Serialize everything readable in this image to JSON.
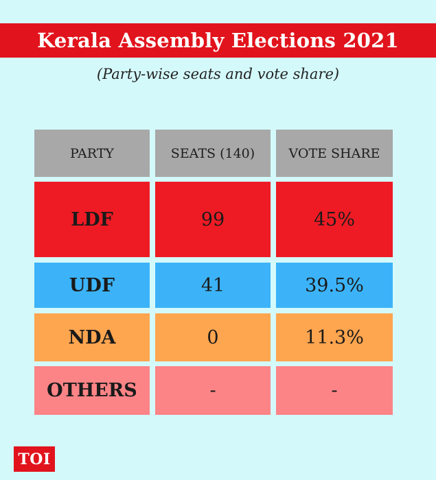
{
  "header": {
    "title": "Kerala Assembly Elections 2021",
    "subtitle": "(Party-wise seats and vote share)"
  },
  "chart_data": {
    "type": "table",
    "title": "Kerala Assembly Elections 2021",
    "subtitle": "(Party-wise seats and vote share)",
    "columns": [
      "PARTY",
      "SEATS (140)",
      "VOTE SHARE"
    ],
    "rows": [
      {
        "party": "LDF",
        "seats": "99",
        "vote_share": "45%",
        "color": "#ee1b24"
      },
      {
        "party": "UDF",
        "seats": "41",
        "vote_share": "39.5%",
        "color": "#3cb3f8"
      },
      {
        "party": "NDA",
        "seats": "0",
        "vote_share": "11.3%",
        "color": "#fea54f"
      },
      {
        "party": "OTHERS",
        "seats": "-",
        "vote_share": "-",
        "color": "#fc8487"
      }
    ],
    "header_color": "#a8a8a8"
  },
  "branding": {
    "logo_text": "TOI",
    "logo_color": "#e1131c"
  },
  "colors": {
    "background": "#d4f9fb",
    "title_banner": "#e1131c"
  }
}
